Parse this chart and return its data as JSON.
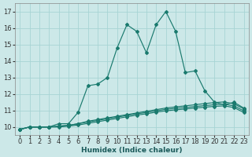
{
  "xlabel": "Humidex (Indice chaleur)",
  "bg_color": "#cce8e8",
  "grid_color": "#a8d4d4",
  "line_color": "#1a7a6e",
  "x_data": [
    0,
    1,
    2,
    3,
    4,
    5,
    6,
    7,
    8,
    9,
    10,
    11,
    12,
    13,
    14,
    15,
    16,
    17,
    18,
    19,
    20,
    21,
    22,
    23
  ],
  "line1": [
    9.85,
    10.0,
    10.0,
    10.0,
    10.2,
    10.2,
    10.9,
    12.5,
    12.6,
    13.0,
    14.8,
    16.2,
    15.8,
    14.5,
    16.2,
    17.0,
    15.8,
    13.3,
    13.4,
    12.2,
    11.5,
    11.35,
    11.5,
    11.15
  ],
  "line2": [
    9.85,
    10.0,
    10.0,
    10.0,
    10.05,
    10.1,
    10.2,
    10.35,
    10.45,
    10.55,
    10.65,
    10.75,
    10.85,
    10.95,
    11.05,
    11.15,
    11.22,
    11.28,
    11.35,
    11.42,
    11.48,
    11.52,
    11.4,
    11.1
  ],
  "line3": [
    9.85,
    10.0,
    10.0,
    10.0,
    10.05,
    10.1,
    10.2,
    10.3,
    10.4,
    10.5,
    10.6,
    10.7,
    10.8,
    10.88,
    10.98,
    11.07,
    11.13,
    11.18,
    11.24,
    11.3,
    11.35,
    11.38,
    11.28,
    10.98
  ],
  "line4": [
    9.85,
    10.0,
    10.0,
    10.0,
    10.0,
    10.05,
    10.12,
    10.22,
    10.32,
    10.42,
    10.52,
    10.62,
    10.72,
    10.8,
    10.9,
    10.98,
    11.04,
    11.09,
    11.15,
    11.2,
    11.25,
    11.28,
    11.18,
    10.88
  ],
  "ylim": [
    9.5,
    17.5
  ],
  "xlim": [
    -0.5,
    23.5
  ],
  "yticks": [
    10,
    11,
    12,
    13,
    14,
    15,
    16,
    17
  ],
  "xticks": [
    0,
    1,
    2,
    3,
    4,
    5,
    6,
    7,
    8,
    9,
    10,
    11,
    12,
    13,
    14,
    15,
    16,
    17,
    18,
    19,
    20,
    21,
    22,
    23
  ],
  "tick_fontsize": 6,
  "xlabel_fontsize": 6.5
}
